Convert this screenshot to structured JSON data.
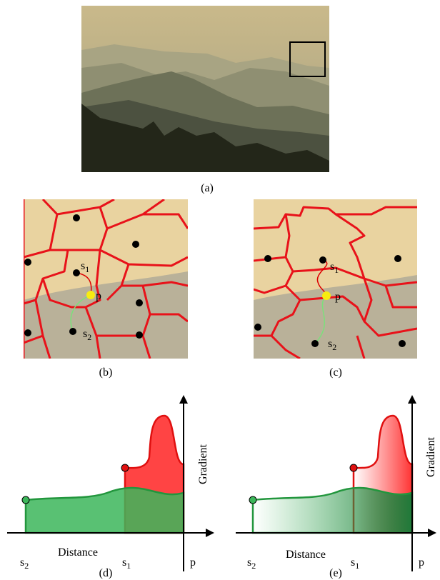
{
  "figure": {
    "panels": [
      {
        "caption": "(a)"
      },
      {
        "caption": "(b)",
        "s1": {
          "base": "s",
          "sub": "1"
        },
        "p": "p",
        "s2": {
          "base": "s",
          "sub": "2"
        }
      },
      {
        "caption": "(c)",
        "s1": {
          "base": "s",
          "sub": "1"
        },
        "p": "p",
        "s2": {
          "base": "s",
          "sub": "2"
        }
      },
      {
        "caption": "(d)",
        "s2": {
          "base": "s",
          "sub": "2"
        },
        "s1": {
          "base": "s",
          "sub": "1"
        },
        "p": "p",
        "x_label": "Distance",
        "y_label": "Gradient"
      },
      {
        "caption": "(e)",
        "s2": {
          "base": "s",
          "sub": "2"
        },
        "s1": {
          "base": "s",
          "sub": "1"
        },
        "p": "p",
        "x_label": "Distance",
        "y_label": "Gradient"
      }
    ]
  }
}
